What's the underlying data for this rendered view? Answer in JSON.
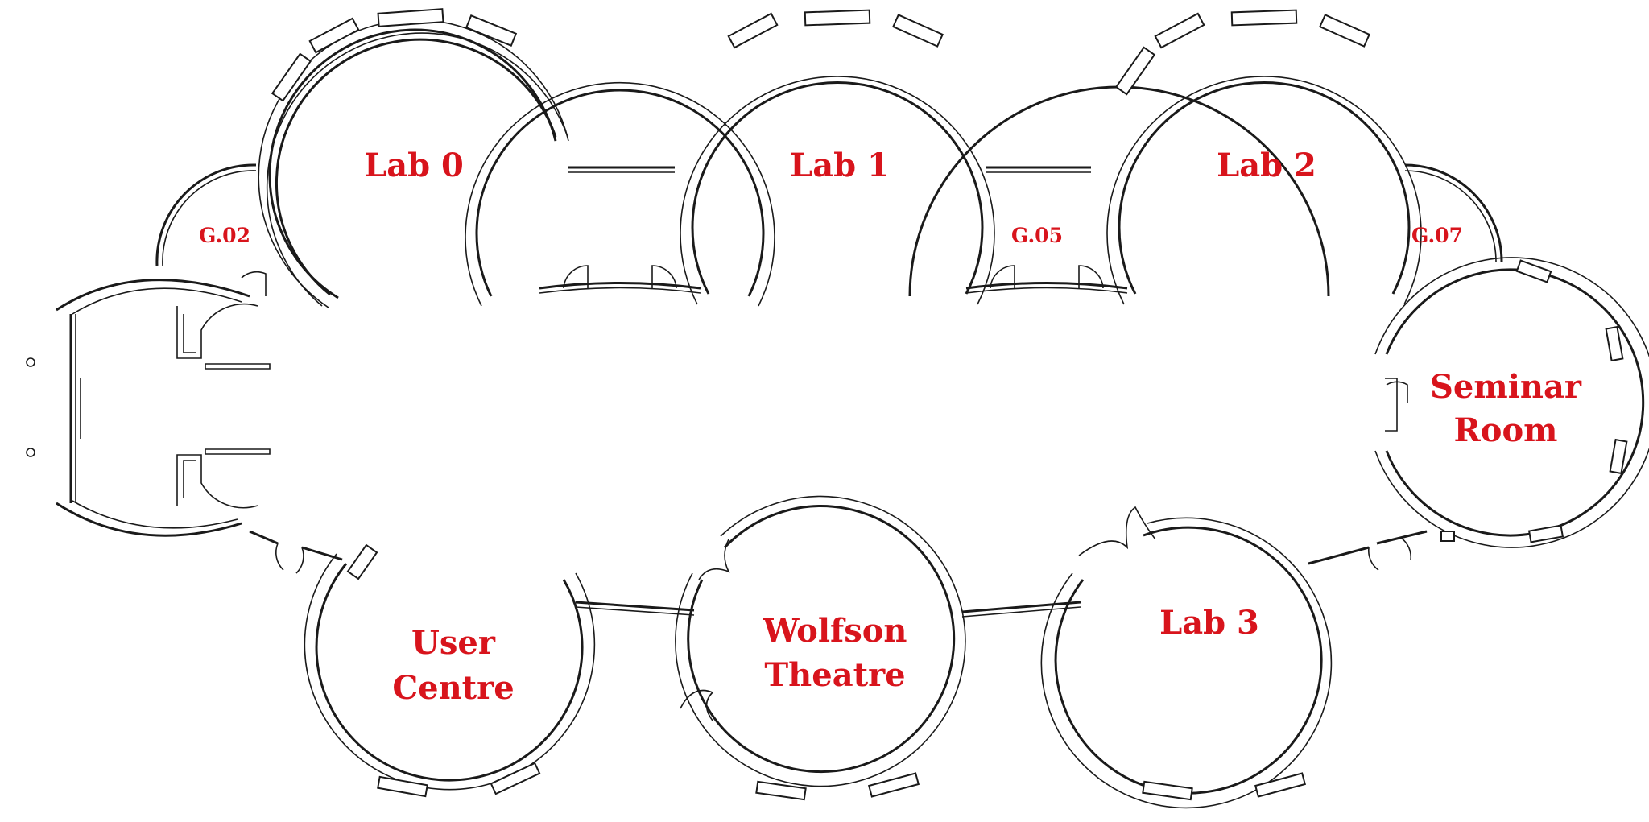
{
  "colors": {
    "label": "#d8141c",
    "wall": "#1a1a1a",
    "background": "#ffffff"
  },
  "rooms": {
    "lab0": "Lab 0",
    "lab1": "Lab 1",
    "lab2": "Lab 2",
    "lab3": "Lab 3",
    "seminar_line1": "Seminar",
    "seminar_line2": "Room",
    "user_centre_line1": "User",
    "user_centre_line2": "Centre",
    "wolfson_line1": "Wolfson",
    "wolfson_line2": "Theatre",
    "g02": "G.02",
    "g05": "G.05",
    "g07": "G.07"
  }
}
